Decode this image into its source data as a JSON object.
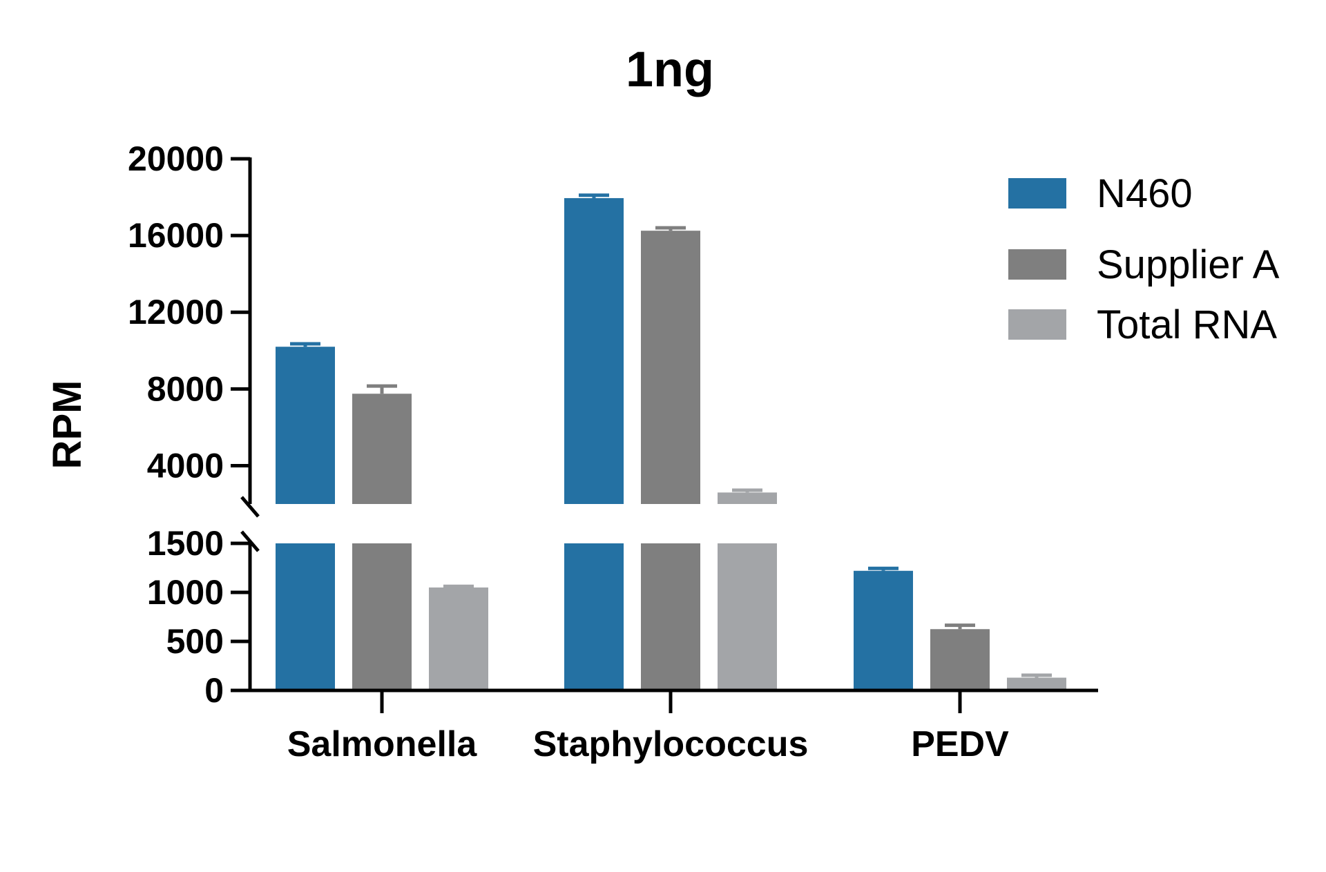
{
  "chart_data": {
    "type": "bar",
    "title": "1ng",
    "xlabel": "",
    "ylabel": "RPM",
    "categories": [
      "Salmonella",
      "Staphylococcus",
      "PEDV"
    ],
    "series": [
      {
        "name": "N460",
        "color": "#2471a3",
        "values": [
          10200,
          17950,
          1220
        ],
        "errors": [
          150,
          150,
          25
        ]
      },
      {
        "name": "Supplier A",
        "color": "#7f7f7f",
        "values": [
          7750,
          16250,
          625
        ],
        "errors": [
          400,
          150,
          40
        ]
      },
      {
        "name": "Total RNA",
        "color": "#a3a5a8",
        "values": [
          1050,
          2600,
          130
        ],
        "errors": [
          12,
          120,
          25
        ]
      }
    ],
    "y_axis_break": {
      "lower_range": [
        0,
        1500
      ],
      "upper_range": [
        2000,
        20000
      ],
      "lower_ticks": [
        "0",
        "500",
        "1000",
        "1500"
      ],
      "upper_ticks": [
        "4000",
        "8000",
        "12000",
        "16000",
        "20000"
      ]
    },
    "legend_position": "top-right",
    "grid": false
  }
}
